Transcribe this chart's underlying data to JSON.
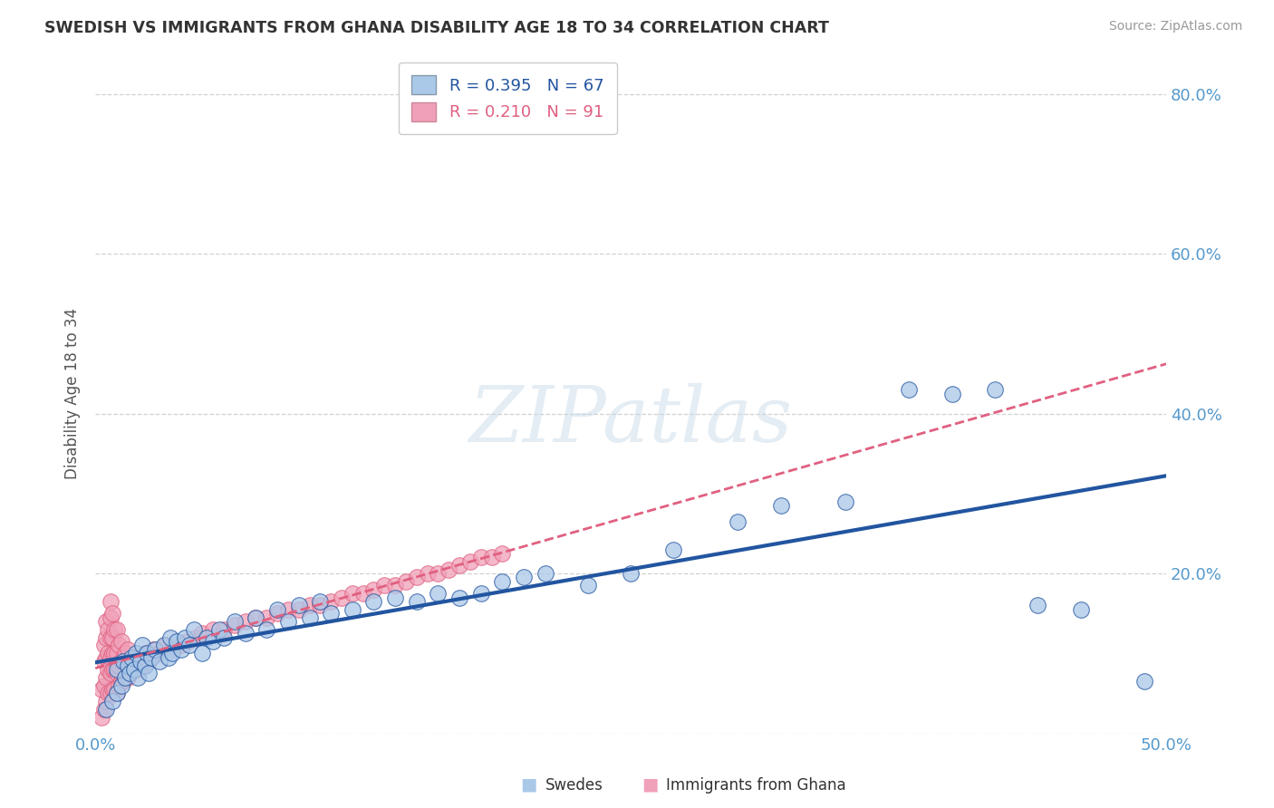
{
  "title": "SWEDISH VS IMMIGRANTS FROM GHANA DISABILITY AGE 18 TO 34 CORRELATION CHART",
  "source": "Source: ZipAtlas.com",
  "ylabel": "Disability Age 18 to 34",
  "xlim": [
    0.0,
    0.5
  ],
  "ylim": [
    0.0,
    0.85
  ],
  "xticks": [
    0.0,
    0.1,
    0.2,
    0.3,
    0.4,
    0.5
  ],
  "yticks": [
    0.0,
    0.2,
    0.4,
    0.6,
    0.8
  ],
  "ytick_labels": [
    "",
    "20.0%",
    "40.0%",
    "60.0%",
    "80.0%"
  ],
  "xtick_labels": [
    "0.0%",
    "",
    "",
    "",
    "",
    "50.0%"
  ],
  "legend_swedes": "R = 0.395   N = 67",
  "legend_ghana": "R = 0.210   N = 91",
  "swedes_color": "#aac8e8",
  "ghana_color": "#f0a0b8",
  "swedes_line_color": "#2255a0",
  "ghana_line_color": "#e06080",
  "watermark": "ZIPatlas",
  "background_color": "#ffffff",
  "grid_color": "#cccccc",
  "swedes_x": [
    0.005,
    0.008,
    0.01,
    0.01,
    0.012,
    0.013,
    0.014,
    0.015,
    0.016,
    0.017,
    0.018,
    0.019,
    0.02,
    0.021,
    0.022,
    0.023,
    0.024,
    0.025,
    0.026,
    0.028,
    0.03,
    0.032,
    0.034,
    0.035,
    0.036,
    0.038,
    0.04,
    0.042,
    0.044,
    0.046,
    0.05,
    0.052,
    0.055,
    0.058,
    0.06,
    0.065,
    0.07,
    0.075,
    0.08,
    0.085,
    0.09,
    0.095,
    0.1,
    0.105,
    0.11,
    0.12,
    0.13,
    0.14,
    0.15,
    0.16,
    0.17,
    0.18,
    0.19,
    0.2,
    0.21,
    0.23,
    0.25,
    0.27,
    0.3,
    0.32,
    0.35,
    0.38,
    0.4,
    0.42,
    0.44,
    0.46,
    0.49
  ],
  "swedes_y": [
    0.03,
    0.04,
    0.05,
    0.08,
    0.06,
    0.09,
    0.07,
    0.085,
    0.075,
    0.095,
    0.08,
    0.1,
    0.07,
    0.09,
    0.11,
    0.085,
    0.1,
    0.075,
    0.095,
    0.105,
    0.09,
    0.11,
    0.095,
    0.12,
    0.1,
    0.115,
    0.105,
    0.12,
    0.11,
    0.13,
    0.1,
    0.12,
    0.115,
    0.13,
    0.12,
    0.14,
    0.125,
    0.145,
    0.13,
    0.155,
    0.14,
    0.16,
    0.145,
    0.165,
    0.15,
    0.155,
    0.165,
    0.17,
    0.165,
    0.175,
    0.17,
    0.175,
    0.19,
    0.195,
    0.2,
    0.185,
    0.2,
    0.23,
    0.265,
    0.285,
    0.29,
    0.43,
    0.425,
    0.43,
    0.16,
    0.155,
    0.065
  ],
  "ghana_x": [
    0.003,
    0.003,
    0.004,
    0.004,
    0.004,
    0.004,
    0.005,
    0.005,
    0.005,
    0.005,
    0.005,
    0.006,
    0.006,
    0.006,
    0.006,
    0.007,
    0.007,
    0.007,
    0.007,
    0.007,
    0.007,
    0.008,
    0.008,
    0.008,
    0.008,
    0.008,
    0.009,
    0.009,
    0.009,
    0.009,
    0.01,
    0.01,
    0.01,
    0.01,
    0.011,
    0.011,
    0.011,
    0.012,
    0.012,
    0.012,
    0.013,
    0.013,
    0.014,
    0.014,
    0.015,
    0.015,
    0.016,
    0.017,
    0.018,
    0.019,
    0.02,
    0.021,
    0.022,
    0.023,
    0.025,
    0.027,
    0.03,
    0.033,
    0.036,
    0.04,
    0.043,
    0.047,
    0.05,
    0.055,
    0.06,
    0.065,
    0.07,
    0.075,
    0.08,
    0.085,
    0.09,
    0.095,
    0.1,
    0.105,
    0.11,
    0.115,
    0.12,
    0.125,
    0.13,
    0.135,
    0.14,
    0.145,
    0.15,
    0.155,
    0.16,
    0.165,
    0.17,
    0.175,
    0.18,
    0.185,
    0.19
  ],
  "ghana_y": [
    0.02,
    0.055,
    0.03,
    0.06,
    0.09,
    0.11,
    0.04,
    0.07,
    0.095,
    0.12,
    0.14,
    0.05,
    0.08,
    0.1,
    0.13,
    0.05,
    0.075,
    0.095,
    0.12,
    0.145,
    0.165,
    0.055,
    0.08,
    0.1,
    0.12,
    0.15,
    0.055,
    0.08,
    0.1,
    0.13,
    0.05,
    0.075,
    0.1,
    0.13,
    0.06,
    0.085,
    0.11,
    0.065,
    0.09,
    0.115,
    0.065,
    0.095,
    0.07,
    0.1,
    0.07,
    0.105,
    0.075,
    0.085,
    0.08,
    0.09,
    0.08,
    0.095,
    0.085,
    0.1,
    0.09,
    0.105,
    0.1,
    0.11,
    0.105,
    0.11,
    0.115,
    0.12,
    0.125,
    0.13,
    0.13,
    0.135,
    0.14,
    0.145,
    0.145,
    0.15,
    0.155,
    0.155,
    0.16,
    0.16,
    0.165,
    0.17,
    0.175,
    0.175,
    0.18,
    0.185,
    0.185,
    0.19,
    0.195,
    0.2,
    0.2,
    0.205,
    0.21,
    0.215,
    0.22,
    0.22,
    0.225
  ]
}
